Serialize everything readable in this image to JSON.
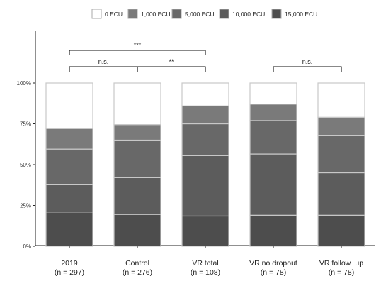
{
  "chart_data": {
    "type": "bar",
    "stacked": true,
    "normalized": true,
    "categories": [
      "2019",
      "Control",
      "VR total",
      "VR no dropout",
      "VR follow−up"
    ],
    "category_sublabels": [
      "(n = 297)",
      "(n = 276)",
      "(n = 108)",
      "(n = 78)",
      "(n = 78)"
    ],
    "series": [
      {
        "name": "15,000 ECU",
        "color": "#4d4d4d",
        "values": [
          21,
          19.5,
          18.5,
          19,
          19
        ]
      },
      {
        "name": "10,000 ECU",
        "color": "#5c5c5c",
        "values": [
          17,
          22.5,
          37,
          37.5,
          26
        ]
      },
      {
        "name": "5,000 ECU",
        "color": "#686868",
        "values": [
          21.5,
          23,
          19.5,
          20.5,
          23
        ]
      },
      {
        "name": "1,000 ECU",
        "color": "#7a7a7a",
        "values": [
          12.5,
          9.5,
          11,
          10,
          11
        ]
      },
      {
        "name": "0 ECU",
        "color": "#ffffff",
        "values": [
          28,
          25.5,
          14,
          13,
          21
        ]
      }
    ],
    "legend_order": [
      "0 ECU",
      "1,000 ECU",
      "5,000 ECU",
      "10,000 ECU",
      "15,000 ECU"
    ],
    "legend_placement": "top",
    "yticks": [
      "0%",
      "25%",
      "50%",
      "75%",
      "100%"
    ],
    "ylim": [
      0,
      100
    ],
    "grid": false,
    "annotations": [
      {
        "from": 0,
        "to": 1,
        "level": 1,
        "label": "n.s."
      },
      {
        "from": 1,
        "to": 2,
        "level": 1,
        "label": "**"
      },
      {
        "from": 0,
        "to": 2,
        "level": 2,
        "label": "***"
      },
      {
        "from": 3,
        "to": 4,
        "level": 1,
        "label": "n.s."
      }
    ]
  }
}
